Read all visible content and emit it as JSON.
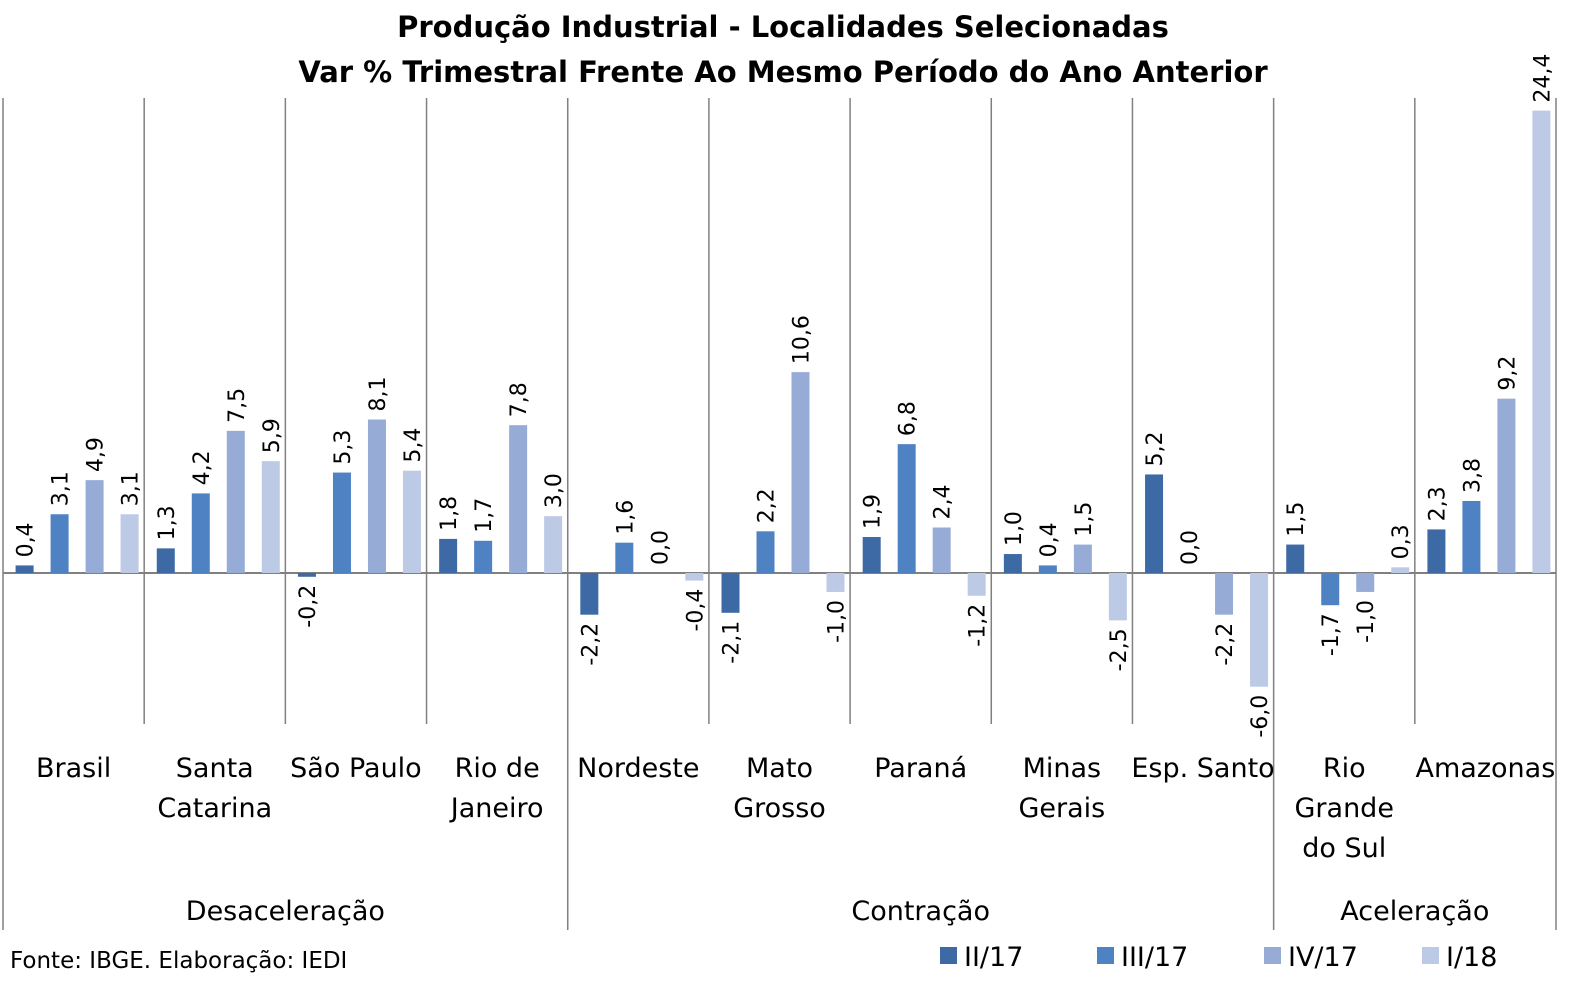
{
  "chart_data": {
    "type": "bar",
    "title": "Produção Industrial - Localidades Selecionadas",
    "subtitle": "Var % Trimestral Frente Ao Mesmo Período do Ano Anterior",
    "categories": [
      [
        "Brasil"
      ],
      [
        "Santa",
        "Catarina"
      ],
      [
        "São Paulo"
      ],
      [
        "Rio de",
        "Janeiro"
      ],
      [
        "Nordeste"
      ],
      [
        "Mato",
        "Grosso"
      ],
      [
        "Paraná"
      ],
      [
        "Minas",
        "Gerais"
      ],
      [
        "Esp. Santo"
      ],
      [
        "Rio",
        "Grande",
        "do Sul"
      ],
      [
        "Amazonas"
      ]
    ],
    "groups": [
      {
        "name": "Desaceleração",
        "start": 0,
        "end": 3
      },
      {
        "name": "Contração",
        "start": 4,
        "end": 8
      },
      {
        "name": "Aceleração",
        "start": 9,
        "end": 10
      }
    ],
    "series": [
      {
        "name": "II/17",
        "color": "#3d6aa4",
        "values": [
          0.4,
          1.3,
          -0.2,
          1.8,
          -2.2,
          -2.1,
          1.9,
          1.0,
          5.2,
          1.5,
          2.3
        ],
        "labels": [
          "0,4",
          "1,3",
          "-0,2",
          "1,8",
          "-2,2",
          "-2,1",
          "1,9",
          "1,0",
          "5,2",
          "1,5",
          "2,3"
        ]
      },
      {
        "name": "III/17",
        "color": "#4f82c3",
        "values": [
          3.1,
          4.2,
          5.3,
          1.7,
          1.6,
          2.2,
          6.8,
          0.4,
          0.0,
          -1.7,
          3.8
        ],
        "labels": [
          "3,1",
          "4,2",
          "5,3",
          "1,7",
          "1,6",
          "2,2",
          "6,8",
          "0,4",
          "0,0",
          "-1,7",
          "3,8"
        ]
      },
      {
        "name": "IV/17",
        "color": "#96acd6",
        "values": [
          4.9,
          7.5,
          8.1,
          7.8,
          0.0,
          10.6,
          2.4,
          1.5,
          -2.2,
          -1.0,
          9.2
        ],
        "labels": [
          "4,9",
          "7,5",
          "8,1",
          "7,8",
          "0,0",
          "10,6",
          "2,4",
          "1,5",
          "-2,2",
          "-1,0",
          "9,2"
        ]
      },
      {
        "name": "I/18",
        "color": "#bccae6",
        "values": [
          3.1,
          5.9,
          5.4,
          3.0,
          -0.4,
          -1.0,
          -1.2,
          -2.5,
          -6.0,
          0.3,
          24.4
        ],
        "labels": [
          "3,1",
          "5,9",
          "5,4",
          "3,0",
          "-0,4",
          "-1,0",
          "-1,2",
          "-2,5",
          "-6,0",
          "0,3",
          "24,4"
        ]
      }
    ],
    "ylim": [
      -8.0,
      25.0
    ],
    "grid": false,
    "legend": "bottom-right"
  },
  "source": "Fonte: IBGE. Elaboração: IEDI"
}
